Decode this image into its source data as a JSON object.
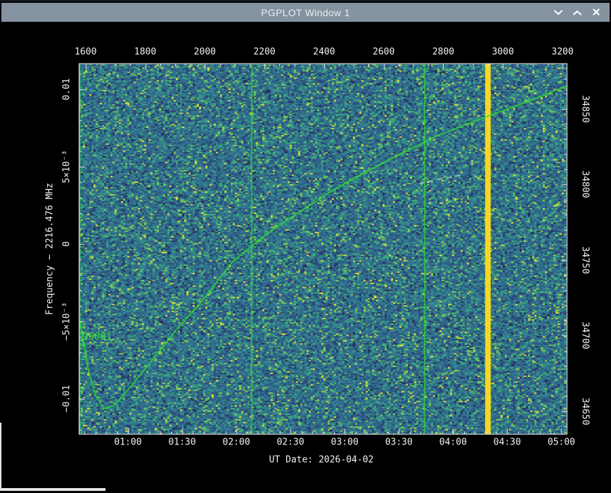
{
  "window": {
    "title": "PGPLOT Window 1",
    "titlebar_color": "#8592a0",
    "controls": [
      {
        "name": "minimize",
        "icon": "chevron-down-icon"
      },
      {
        "name": "maximize",
        "icon": "chevron-up-icon"
      },
      {
        "name": "close",
        "icon": "close-icon"
      }
    ]
  },
  "chart_data": {
    "type": "heatmap",
    "description": "Radio spectrogram (waterfall) with predicted Doppler curve overlay for object 95001",
    "x_axis_bottom": {
      "axis_label": "UT Date: 2026-04-02",
      "tick_labels": [
        "01:00",
        "01:30",
        "02:00",
        "02:30",
        "03:00",
        "03:30",
        "04:00",
        "04:30",
        "05:00"
      ],
      "tick_values_hours": [
        1,
        1.5,
        2,
        2.5,
        3,
        3.5,
        4,
        4.5,
        5
      ],
      "minor_tick_step_hours": 0.1,
      "range_hours": [
        0.546,
        5.049
      ]
    },
    "x_axis_top": {
      "tick_labels": [
        "1600",
        "1800",
        "2000",
        "2200",
        "2400",
        "2600",
        "2800",
        "3000",
        "3200"
      ],
      "tick_values": [
        1600,
        1800,
        2000,
        2200,
        2400,
        2600,
        2800,
        3000,
        3200
      ],
      "minor_tick_step": 50,
      "range": [
        1577,
        3214
      ]
    },
    "y_axis_left": {
      "axis_label": "Frequency − 2216.476 MHz",
      "tick_labels": [
        "0.01",
        "5×10⁻³",
        "0",
        "−5×10⁻³",
        "−0.01"
      ],
      "tick_values": [
        0.01,
        0.005,
        0,
        -0.005,
        -0.01
      ],
      "minor_tick_step": 0.001,
      "range": [
        -0.01227,
        0.01168
      ],
      "units": "MHz"
    },
    "y_axis_right": {
      "tick_labels": [
        "34850",
        "34800",
        "34750",
        "34700",
        "34650"
      ],
      "tick_values": [
        34850,
        34800,
        34750,
        34700,
        34650
      ],
      "minor_tick_step": 10,
      "range": [
        34635,
        34880
      ]
    },
    "overlay": {
      "object_label": "95001",
      "object_label_color": "#35e135",
      "doppler_curve": {
        "color": "#2be42b",
        "points_hours_mhz": [
          [
            0.546,
            -0.00455
          ],
          [
            0.63,
            -0.00795
          ],
          [
            0.695,
            -0.00968
          ],
          [
            0.779,
            -0.01064
          ],
          [
            0.877,
            -0.01041
          ],
          [
            1.019,
            -0.00927
          ],
          [
            1.214,
            -0.00759
          ],
          [
            1.441,
            -0.00559
          ],
          [
            1.7,
            -0.00355
          ],
          [
            1.96,
            -0.00118
          ],
          [
            2.285,
            0.00068
          ],
          [
            2.577,
            0.00205
          ],
          [
            2.9,
            0.0035
          ],
          [
            3.225,
            0.00477
          ],
          [
            3.55,
            0.00595
          ],
          [
            3.874,
            0.00705
          ],
          [
            4.199,
            0.00795
          ],
          [
            4.523,
            0.00877
          ],
          [
            4.848,
            0.00964
          ],
          [
            5.049,
            0.01023
          ]
        ]
      },
      "green_vlines_hours": [
        0.552,
        2.142,
        3.738
      ],
      "yellow_vline": {
        "hours": 4.322,
        "width_hours": 0.052,
        "color": "#f3d824"
      },
      "faint_streak": {
        "from": [
          3.69,
          0.00391
        ],
        "to": [
          4.1,
          0.0045
        ],
        "color": "#bfe9d4"
      }
    },
    "background": {
      "kind": "noise-spectrogram",
      "palette": [
        "#232758",
        "#27346a",
        "#2a4578",
        "#2d5482",
        "#2f6089",
        "#316a8d",
        "#33748e",
        "#338390",
        "#349a84",
        "#45b573",
        "#8ed14b",
        "#e5e337"
      ]
    },
    "frame_color": "#ececec",
    "label_color": "#f1f1f1"
  }
}
